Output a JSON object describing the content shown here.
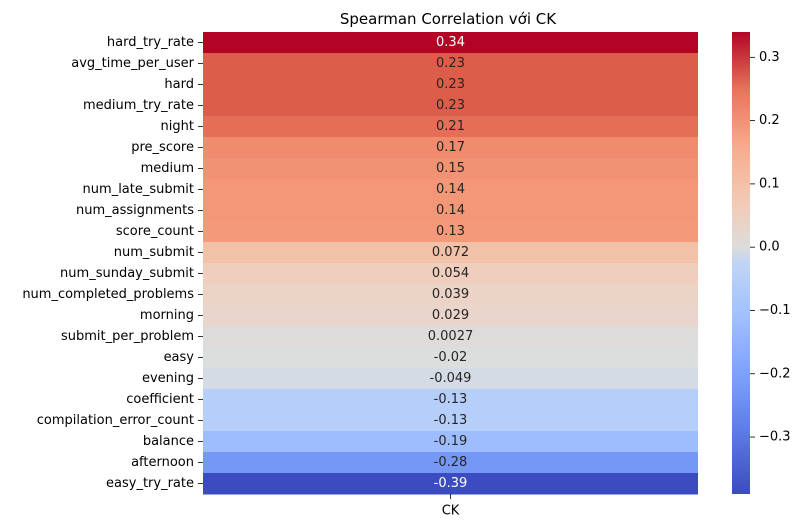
{
  "chart_data": {
    "type": "heatmap",
    "title": "Spearman Correlation với CK",
    "columns": [
      "CK"
    ],
    "rows": [
      {
        "label": "hard_try_rate",
        "value": 0.34,
        "display": "0.34",
        "color": "#b40426"
      },
      {
        "label": "avg_time_per_user",
        "value": 0.23,
        "display": "0.23",
        "color": "#dc5d4a"
      },
      {
        "label": "hard",
        "value": 0.23,
        "display": "0.23",
        "color": "#dc5d4a"
      },
      {
        "label": "medium_try_rate",
        "value": 0.23,
        "display": "0.23",
        "color": "#dc5d4a"
      },
      {
        "label": "night",
        "value": 0.21,
        "display": "0.21",
        "color": "#e46e56"
      },
      {
        "label": "pre_score",
        "value": 0.17,
        "display": "0.17",
        "color": "#f08b6e"
      },
      {
        "label": "medium",
        "value": 0.15,
        "display": "0.15",
        "color": "#f29274"
      },
      {
        "label": "num_late_submit",
        "value": 0.14,
        "display": "0.14",
        "color": "#f39778"
      },
      {
        "label": "num_assignments",
        "value": 0.14,
        "display": "0.14",
        "color": "#f39778"
      },
      {
        "label": "score_count",
        "value": 0.13,
        "display": "0.13",
        "color": "#f49a7b"
      },
      {
        "label": "num_submit",
        "value": 0.072,
        "display": "0.072",
        "color": "#f1c1a8"
      },
      {
        "label": "num_sunday_submit",
        "value": 0.054,
        "display": "0.054",
        "color": "#efcebd"
      },
      {
        "label": "num_completed_problems",
        "value": 0.039,
        "display": "0.039",
        "color": "#ebd3c6"
      },
      {
        "label": "morning",
        "value": 0.029,
        "display": "0.029",
        "color": "#e9d5cb"
      },
      {
        "label": "submit_per_problem",
        "value": 0.0027,
        "display": "0.0027",
        "color": "#dedcdb"
      },
      {
        "label": "easy",
        "value": -0.02,
        "display": "-0.02",
        "color": "#dcdddd"
      },
      {
        "label": "evening",
        "value": -0.049,
        "display": "-0.049",
        "color": "#d5dbe5"
      },
      {
        "label": "coefficient",
        "value": -0.13,
        "display": "-0.13",
        "color": "#b6cefa"
      },
      {
        "label": "compilation_error_count",
        "value": -0.13,
        "display": "-0.13",
        "color": "#b6cefa"
      },
      {
        "label": "balance",
        "value": -0.19,
        "display": "-0.19",
        "color": "#9dbdff"
      },
      {
        "label": "afternoon",
        "value": -0.28,
        "display": "-0.28",
        "color": "#7597f6"
      },
      {
        "label": "easy_try_rate",
        "value": -0.39,
        "display": "-0.39",
        "color": "#3b4cc0"
      }
    ],
    "colorbar": {
      "min": -0.39,
      "max": 0.34,
      "ticks": [
        0.3,
        0.2,
        0.1,
        0.0,
        -0.1,
        -0.2,
        -0.3
      ],
      "tick_labels": [
        "0.3",
        "0.2",
        "0.1",
        "0.0",
        "−0.1",
        "−0.2",
        "−0.3"
      ],
      "colormap": "coolwarm"
    }
  }
}
